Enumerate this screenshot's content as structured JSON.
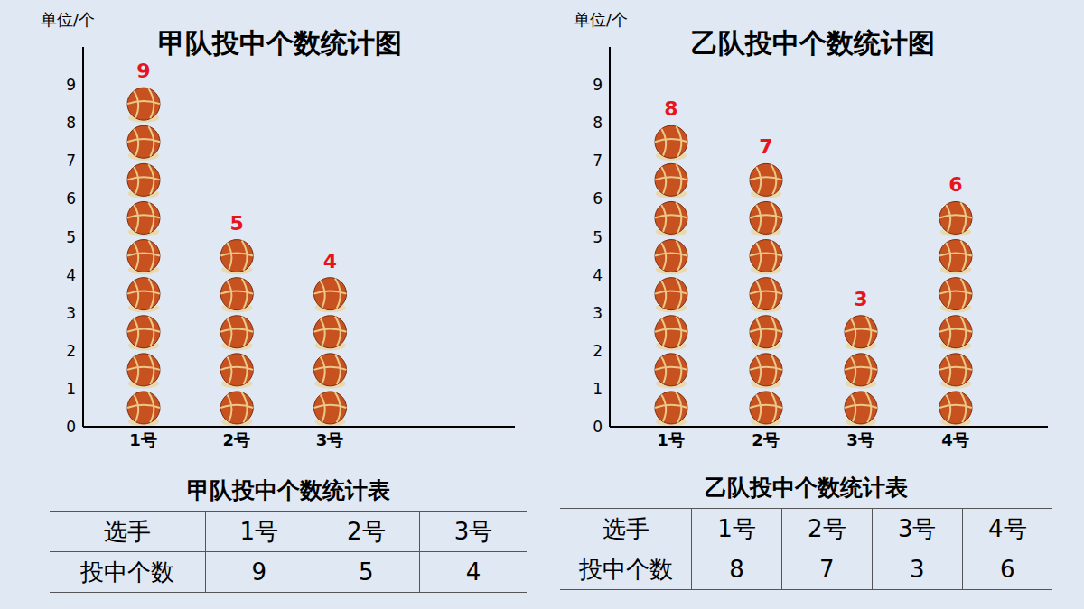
{
  "chart_data": [
    {
      "type": "bar",
      "title": "甲队投中个数统计图",
      "y_label": "单位/个",
      "categories": [
        "1号",
        "2号",
        "3号",
        null
      ],
      "values": [
        9,
        5,
        4,
        null
      ],
      "color": "#c8521f",
      "marker": "basketball",
      "ylim": [
        0,
        10
      ],
      "yticks": [
        0,
        1,
        2,
        3,
        4,
        5,
        6,
        7,
        8,
        9
      ],
      "data_labels": true
    },
    {
      "type": "bar",
      "title": "乙队投中个数统计图",
      "y_label": "单位/个",
      "categories": [
        "1号",
        "2号",
        "3号",
        "4号"
      ],
      "values": [
        8,
        7,
        3,
        6
      ],
      "color": "#c8521f",
      "marker": "basketball",
      "ylim": [
        0,
        10
      ],
      "yticks": [
        0,
        1,
        2,
        3,
        4,
        5,
        6,
        7,
        8,
        9
      ],
      "data_labels": true
    }
  ],
  "tables": [
    {
      "title": "甲队投中个数统计表",
      "rows": [
        [
          "选手",
          "1号",
          "2号",
          "3号"
        ],
        [
          "投中个数",
          9,
          5,
          4
        ]
      ]
    },
    {
      "title": "乙队投中个数统计表",
      "rows": [
        [
          "选手",
          "1号",
          "2号",
          "3号",
          "4号"
        ],
        [
          "投中个数",
          8,
          7,
          3,
          6
        ]
      ]
    }
  ]
}
